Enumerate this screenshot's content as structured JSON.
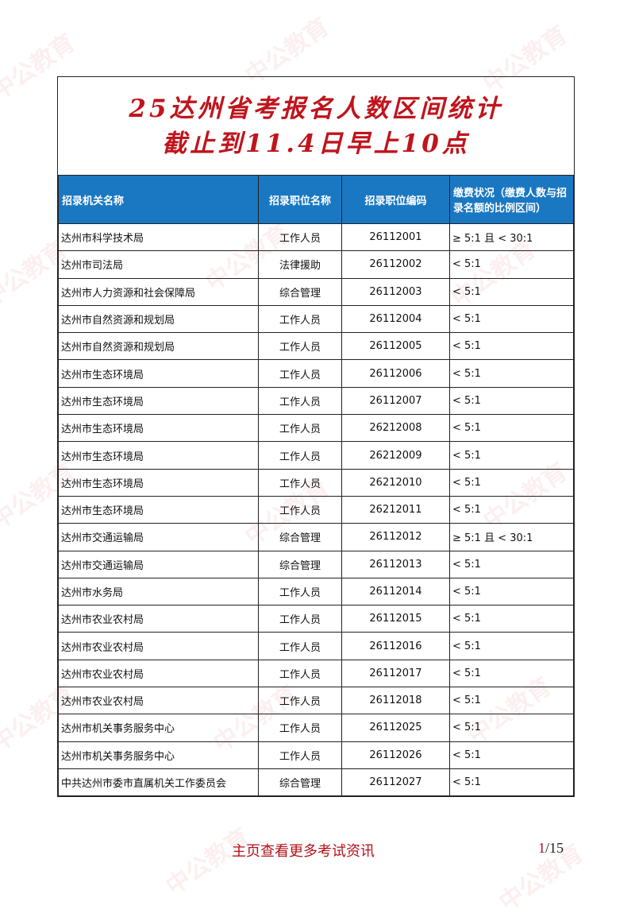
{
  "watermark": "中公教育",
  "title": {
    "line1": "25达州省考报名人数区间统计",
    "line2": "截止到11.4日早上10点"
  },
  "table": {
    "headers": [
      "招录机关名称",
      "招录职位名称",
      "招录职位编码",
      "缴费状况（缴费人数与招录名额的比例区间）"
    ],
    "rows": [
      [
        "达州市科学技术局",
        "工作人员",
        "26112001",
        "≥ 5:1 且 < 30:1"
      ],
      [
        "达州市司法局",
        "法律援助",
        "26112002",
        "< 5:1"
      ],
      [
        "达州市人力资源和社会保障局",
        "综合管理",
        "26112003",
        "< 5:1"
      ],
      [
        "达州市自然资源和规划局",
        "工作人员",
        "26112004",
        "< 5:1"
      ],
      [
        "达州市自然资源和规划局",
        "工作人员",
        "26112005",
        "< 5:1"
      ],
      [
        "达州市生态环境局",
        "工作人员",
        "26112006",
        "< 5:1"
      ],
      [
        "达州市生态环境局",
        "工作人员",
        "26112007",
        "< 5:1"
      ],
      [
        "达州市生态环境局",
        "工作人员",
        "26212008",
        "< 5:1"
      ],
      [
        "达州市生态环境局",
        "工作人员",
        "26212009",
        "< 5:1"
      ],
      [
        "达州市生态环境局",
        "工作人员",
        "26212010",
        "< 5:1"
      ],
      [
        "达州市生态环境局",
        "工作人员",
        "26212011",
        "< 5:1"
      ],
      [
        "达州市交通运输局",
        "综合管理",
        "26112012",
        "≥ 5:1 且 < 30:1"
      ],
      [
        "达州市交通运输局",
        "综合管理",
        "26112013",
        "< 5:1"
      ],
      [
        "达州市水务局",
        "工作人员",
        "26112014",
        "< 5:1"
      ],
      [
        "达州市农业农村局",
        "工作人员",
        "26112015",
        "< 5:1"
      ],
      [
        "达州市农业农村局",
        "工作人员",
        "26112016",
        "< 5:1"
      ],
      [
        "达州市农业农村局",
        "工作人员",
        "26112017",
        "< 5:1"
      ],
      [
        "达州市农业农村局",
        "工作人员",
        "26112018",
        "< 5:1"
      ],
      [
        "达州市机关事务服务中心",
        "工作人员",
        "26112025",
        "< 5:1"
      ],
      [
        "达州市机关事务服务中心",
        "工作人员",
        "26112026",
        "< 5:1"
      ],
      [
        "中共达州市委市直属机关工作委员会",
        "综合管理",
        "26112027",
        "< 5:1"
      ]
    ]
  },
  "footer": {
    "link": "主页查看更多考试资讯",
    "page_current": "1",
    "page_total": "/15"
  },
  "colors": {
    "title": "#c0141c",
    "header_bg": "#1a78c2",
    "footer_link": "#b0121a"
  }
}
